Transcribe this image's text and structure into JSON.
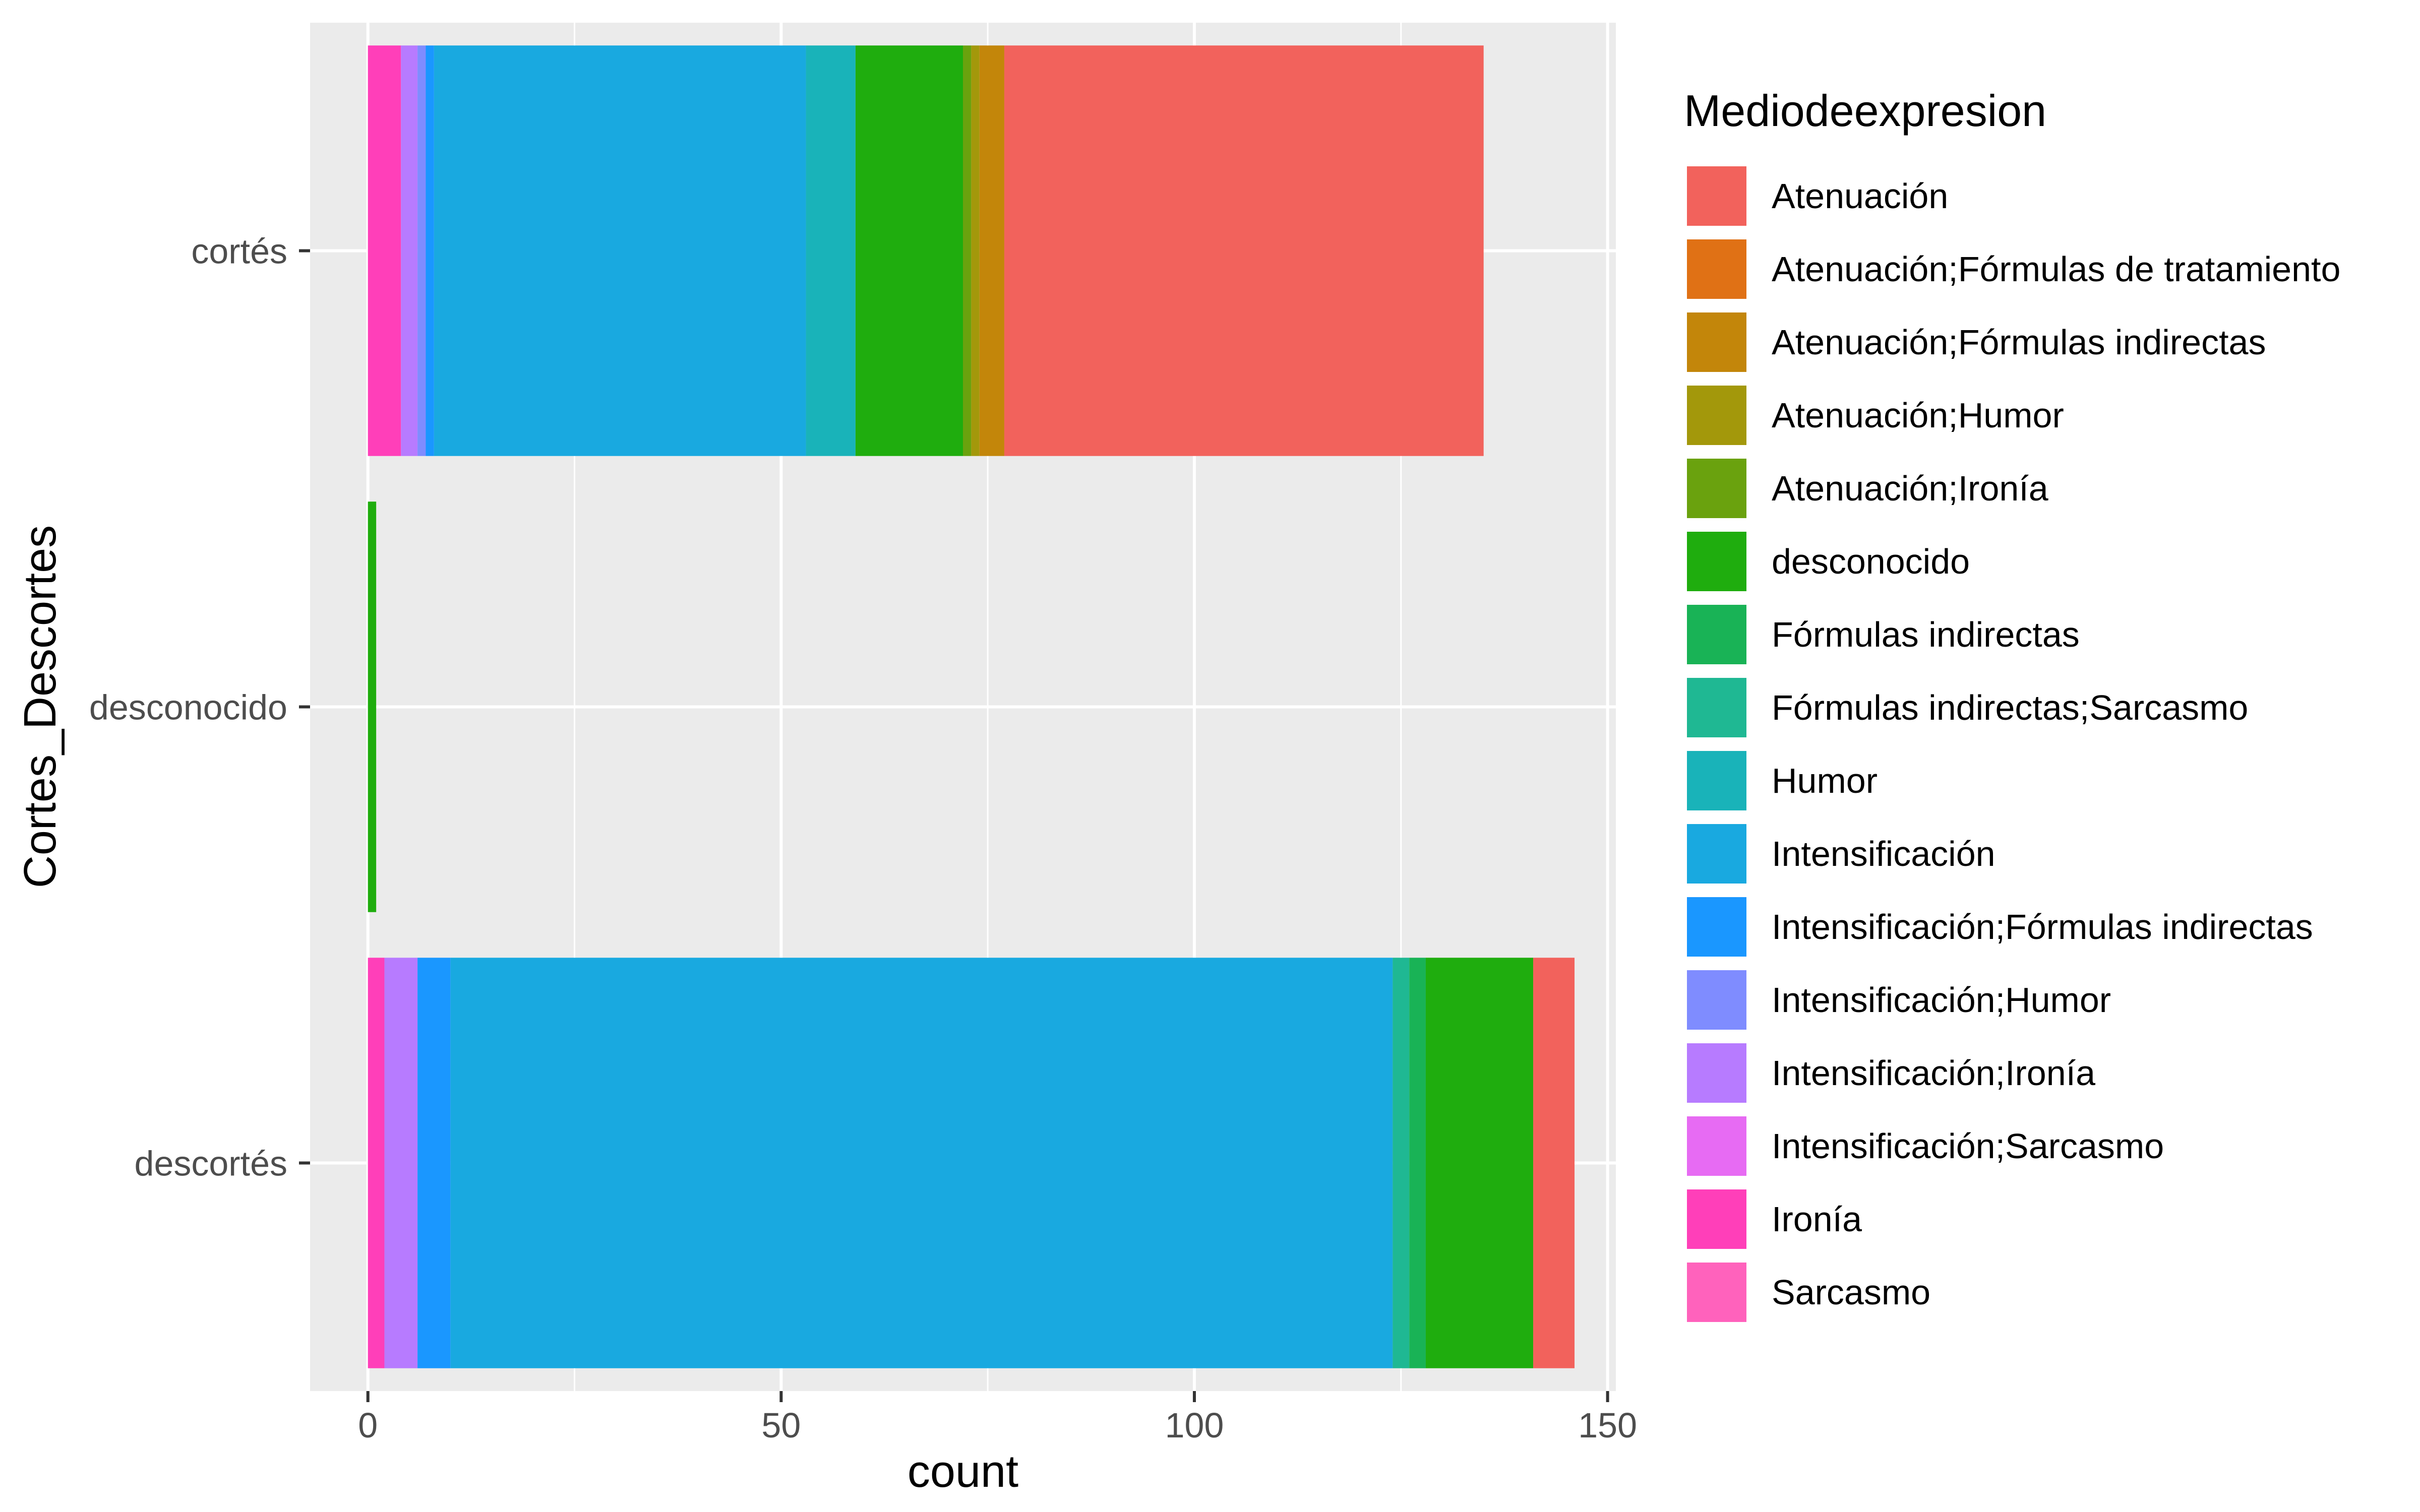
{
  "chart_data": {
    "type": "bar",
    "orientation": "horizontal",
    "stacked": true,
    "xlabel": "count",
    "ylabel": "Cortes_Descortes",
    "xlim": [
      -7,
      151
    ],
    "x_ticks": [
      0,
      50,
      100,
      150
    ],
    "x_tick_labels": [
      "0",
      "50",
      "100",
      "150"
    ],
    "categories": [
      "descortés",
      "desconocido",
      "cortés"
    ],
    "legend_title": "Mediodeexpresion",
    "legend_position": "right",
    "grid": true,
    "series": [
      {
        "name": "Sarcasmo",
        "color": "#FF62BC",
        "values": [
          0,
          0,
          0
        ]
      },
      {
        "name": "Ironía",
        "color": "#FF3FB9",
        "values": [
          2,
          0,
          4
        ]
      },
      {
        "name": "Intensificación;Sarcasmo",
        "color": "#E76BF3",
        "values": [
          0,
          0,
          0
        ]
      },
      {
        "name": "Intensificación;Ironía",
        "color": "#B77BFF",
        "values": [
          4,
          0,
          2
        ]
      },
      {
        "name": "Intensificación;Humor",
        "color": "#7F8CFF",
        "values": [
          0,
          0,
          1
        ]
      },
      {
        "name": "Intensificación;Fórmulas indirectas",
        "color": "#1A97FF",
        "values": [
          4,
          0,
          1
        ]
      },
      {
        "name": "Intensificación",
        "color": "#19A9E0",
        "values": [
          114,
          0,
          45
        ]
      },
      {
        "name": "Humor",
        "color": "#19B3B9",
        "values": [
          0,
          0,
          6
        ]
      },
      {
        "name": "Fórmulas indirectas;Sarcasmo",
        "color": "#1FB893",
        "values": [
          2,
          0,
          0
        ]
      },
      {
        "name": "Fórmulas indirectas",
        "color": "#19B356",
        "values": [
          2,
          0,
          0
        ]
      },
      {
        "name": "desconocido",
        "color": "#1FAD0E",
        "values": [
          13,
          1,
          13
        ]
      },
      {
        "name": "Atenuación;Ironía",
        "color": "#6AA20E",
        "values": [
          0,
          0,
          1
        ]
      },
      {
        "name": "Atenuación;Humor",
        "color": "#A3980B",
        "values": [
          0,
          0,
          1
        ]
      },
      {
        "name": "Atenuación;Fórmulas indirectas",
        "color": "#C3860A",
        "values": [
          0,
          0,
          3
        ]
      },
      {
        "name": "Atenuación;Fórmulas de tratamiento",
        "color": "#E07115",
        "values": [
          0,
          0,
          0
        ]
      },
      {
        "name": "Atenuación",
        "color": "#F2625C",
        "values": [
          5,
          0,
          58
        ]
      }
    ],
    "legend_order": [
      "Atenuación",
      "Atenuación;Fórmulas de tratamiento",
      "Atenuación;Fórmulas indirectas",
      "Atenuación;Humor",
      "Atenuación;Ironía",
      "desconocido",
      "Fórmulas indirectas",
      "Fórmulas indirectas;Sarcasmo",
      "Humor",
      "Intensificación",
      "Intensificación;Fórmulas indirectas",
      "Intensificación;Humor",
      "Intensificación;Ironía",
      "Intensificación;Sarcasmo",
      "Ironía",
      "Sarcasmo"
    ]
  }
}
